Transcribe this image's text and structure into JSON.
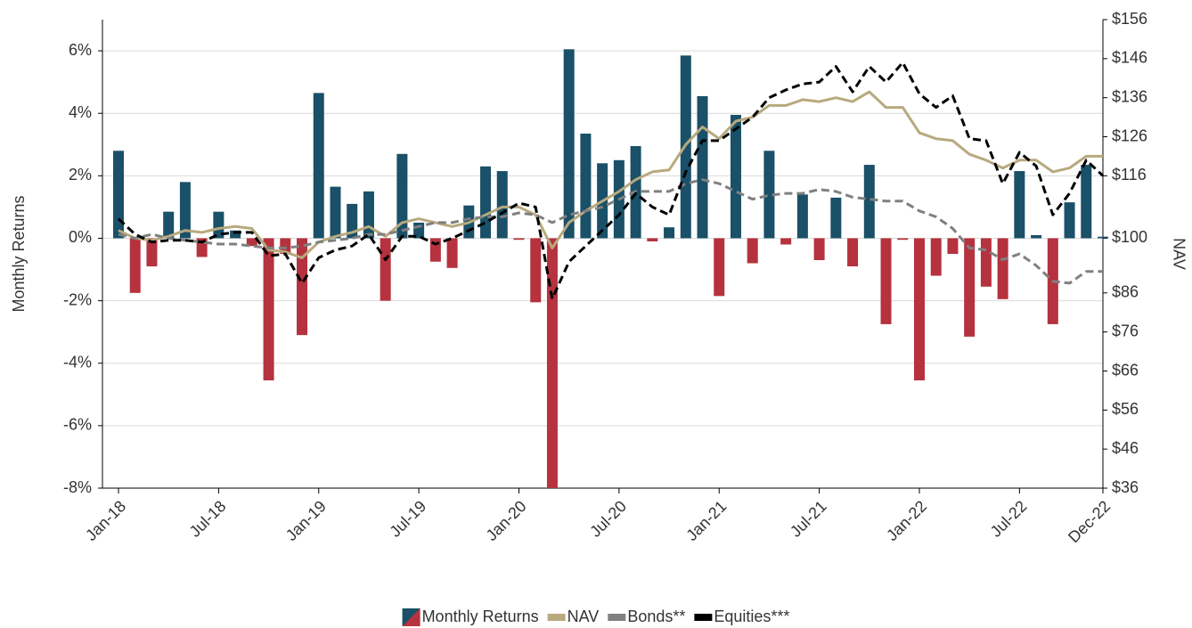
{
  "chart_data": {
    "type": "bar",
    "categories": [
      "Jan-18",
      null,
      null,
      null,
      null,
      null,
      "Jul-18",
      null,
      null,
      null,
      null,
      null,
      "Jan-19",
      null,
      null,
      null,
      null,
      null,
      "Jul-19",
      null,
      null,
      null,
      null,
      null,
      "Jan-20",
      null,
      null,
      null,
      null,
      null,
      "Jul-20",
      null,
      null,
      null,
      null,
      null,
      "Jan-21",
      null,
      null,
      null,
      null,
      null,
      "Jul-21",
      null,
      null,
      null,
      null,
      null,
      "Jan-22",
      null,
      null,
      null,
      null,
      null,
      "Jul-22",
      null,
      null,
      null,
      null,
      "Dec-22"
    ],
    "y_label": "Monthly Returns",
    "y2_label": "NAV",
    "ylim": [
      -8,
      7
    ],
    "yticks": [
      {
        "value": -8,
        "label": "-8%"
      },
      {
        "value": -6,
        "label": "-6%"
      },
      {
        "value": -4,
        "label": "-4%"
      },
      {
        "value": -2,
        "label": "-2%"
      },
      {
        "value": 0,
        "label": "0%"
      },
      {
        "value": 2,
        "label": "2%"
      },
      {
        "value": 4,
        "label": "4%"
      },
      {
        "value": 6,
        "label": "6%"
      }
    ],
    "y2lim": [
      36,
      156
    ],
    "y2ticks": [
      {
        "value": 36,
        "label": "$36"
      },
      {
        "value": 46,
        "label": "$46"
      },
      {
        "value": 56,
        "label": "$56"
      },
      {
        "value": 66,
        "label": "$66"
      },
      {
        "value": 76,
        "label": "$76"
      },
      {
        "value": 86,
        "label": "$86"
      },
      {
        "value": 100,
        "label": "$100"
      },
      {
        "value": 116,
        "label": "$116"
      },
      {
        "value": 126,
        "label": "$126"
      },
      {
        "value": 136,
        "label": "$136"
      },
      {
        "value": 146,
        "label": "$146"
      },
      {
        "value": 156,
        "label": "$156"
      }
    ],
    "grid": true,
    "legend": "bottom",
    "series": [
      {
        "name": "Monthly Returns",
        "type": "bar",
        "color": "#1a5068",
        "negative_color": "#b5323e",
        "values": [
          2.8,
          -1.75,
          -0.9,
          0.85,
          1.8,
          -0.6,
          0.85,
          0.25,
          -0.25,
          -4.55,
          -0.5,
          -3.1,
          4.65,
          1.65,
          1.1,
          1.5,
          -2.0,
          2.7,
          0.5,
          -0.75,
          -0.95,
          1.05,
          2.3,
          2.15,
          -0.05,
          -2.05,
          -8.0,
          6.05,
          3.35,
          2.4,
          2.5,
          2.95,
          -0.1,
          0.35,
          5.85,
          4.55,
          -1.85,
          3.95,
          -0.8,
          2.8,
          -0.2,
          1.4,
          -0.7,
          1.3,
          -0.9,
          2.35,
          -2.75,
          -0.05,
          -4.55,
          -1.2,
          -0.5,
          -3.15,
          -1.55,
          -1.95,
          2.15,
          0.1,
          -2.75,
          1.15,
          2.35,
          0.05
        ]
      },
      {
        "name": "NAV",
        "type": "line",
        "axis": "y2",
        "color": "#b8a97e",
        "dashed": false,
        "values": [
          102,
          100,
          99.5,
          100.5,
          102,
          101.5,
          102.5,
          103,
          102.5,
          97,
          96.5,
          95,
          99,
          100.5,
          101.5,
          103,
          100.5,
          104,
          105,
          104,
          103,
          104,
          106,
          108,
          108,
          106,
          97.5,
          104,
          107,
          109.5,
          112,
          115,
          117,
          117.5,
          124,
          128.5,
          125.5,
          130,
          131,
          134,
          134,
          135.5,
          135,
          136,
          135,
          137.5,
          133.5,
          133.5,
          127,
          125.5,
          125,
          121.5,
          120,
          118,
          120,
          120,
          117,
          118,
          121,
          121
        ]
      },
      {
        "name": "Bonds**",
        "type": "line",
        "axis": "y2",
        "color": "#808080",
        "dashed": true,
        "values": [
          101,
          100,
          101,
          100,
          99.5,
          99,
          98.5,
          98.5,
          98,
          97.5,
          97.5,
          98,
          99,
          99.5,
          100,
          101,
          101,
          102,
          103,
          104,
          104,
          105,
          105.5,
          105.5,
          106.5,
          106,
          104,
          106,
          107,
          108,
          110,
          112,
          112,
          112,
          114,
          115,
          114,
          112,
          110,
          111,
          111.5,
          111.5,
          112.5,
          112,
          110.5,
          110,
          109.5,
          109.5,
          107,
          105.5,
          102.5,
          97.5,
          97,
          94.5,
          96,
          93,
          89,
          88.5,
          91.5,
          91.5
        ]
      },
      {
        "name": "Equities***",
        "type": "line",
        "axis": "y2",
        "color": "#000000",
        "dashed": true,
        "values": [
          105,
          101,
          99,
          99.5,
          99.5,
          99,
          101,
          101.5,
          101.5,
          95.5,
          96,
          88.5,
          95,
          97,
          98,
          101,
          94.5,
          100.5,
          100.5,
          98.5,
          100,
          102,
          104,
          106.5,
          109,
          108,
          84.5,
          94,
          98,
          102,
          106,
          111.5,
          108,
          106,
          117,
          125,
          125,
          128,
          131,
          136,
          138,
          139.5,
          140,
          144,
          137.5,
          144,
          140,
          145,
          137,
          133.5,
          136.5,
          125.5,
          125,
          114,
          122,
          118.5,
          106,
          111.5,
          120,
          116
        ]
      }
    ]
  }
}
